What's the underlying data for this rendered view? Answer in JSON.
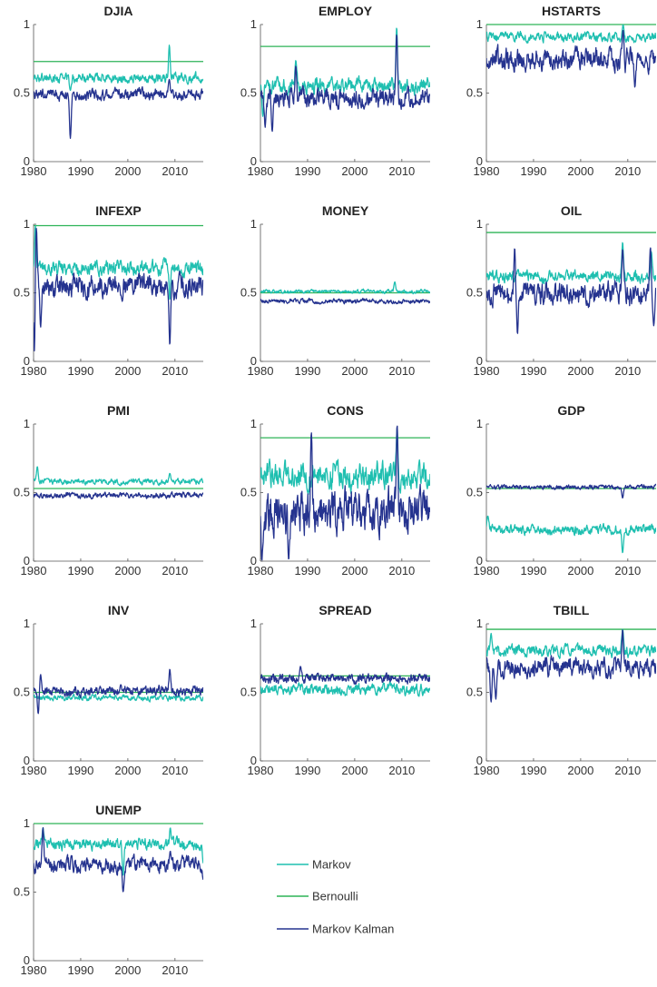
{
  "chart_data": {
    "type": "line",
    "layout": "small-multiples",
    "colors": {
      "Markov": "#1fbfb0",
      "Bernoulli": "#2db357",
      "Markov Kalman": "#25338f"
    },
    "xlim": [
      1980,
      2016
    ],
    "ylim": [
      0,
      1
    ],
    "xticks": [
      1980,
      1990,
      2000,
      2010
    ],
    "yticks": [
      0,
      0.5,
      1
    ],
    "xtick_labels": [
      "1980",
      "1990",
      "2000",
      "2010"
    ],
    "ytick_labels": [
      "0",
      "0.5",
      "1"
    ],
    "legend": {
      "placement": "lower-right empty panel",
      "entries": [
        "Markov",
        "Bernoulli",
        "Markov Kalman"
      ]
    },
    "panels": [
      {
        "title": "DJIA",
        "bernoulli": 0.73,
        "markov": {
          "base": 0.61,
          "noise": 0.025,
          "events": [
            [
              2008.8,
              0.85
            ],
            [
              1987.8,
              0.52
            ]
          ]
        },
        "kalman": {
          "base": 0.49,
          "noise": 0.03,
          "events": [
            [
              1987.8,
              0.17
            ],
            [
              2008.8,
              0.6
            ]
          ]
        }
      },
      {
        "title": "EMPLOY",
        "bernoulli": 0.84,
        "markov": {
          "base": 0.55,
          "noise": 0.04,
          "events": [
            [
              1980.5,
              0.33
            ],
            [
              1987.5,
              0.74
            ],
            [
              2008.9,
              0.98
            ]
          ]
        },
        "kalman": {
          "base": 0.46,
          "noise": 0.05,
          "events": [
            [
              1981.0,
              0.25
            ],
            [
              1982.5,
              0.22
            ],
            [
              1987.5,
              0.7
            ],
            [
              2008.9,
              0.93
            ]
          ]
        }
      },
      {
        "title": "HSTARTS",
        "bernoulli": 1.0,
        "markov": {
          "base": 0.91,
          "noise": 0.025,
          "events": [
            [
              2009.0,
              1.0
            ]
          ]
        },
        "kalman": {
          "base": 0.75,
          "noise": 0.06,
          "events": [
            [
              2011.5,
              0.54
            ],
            [
              2009.0,
              0.96
            ]
          ]
        }
      },
      {
        "title": "INFEXP",
        "bernoulli": 0.99,
        "markov": {
          "base": 0.68,
          "noise": 0.04,
          "events": [
            [
              1980.4,
              0.99
            ],
            [
              2008.9,
              0.45
            ]
          ]
        },
        "kalman": {
          "base": 0.55,
          "noise": 0.06,
          "events": [
            [
              1980.2,
              0.02
            ],
            [
              1980.6,
              0.97
            ],
            [
              1981.5,
              0.25
            ],
            [
              2008.9,
              0.12
            ]
          ]
        }
      },
      {
        "title": "MONEY",
        "bernoulli": 0.5,
        "markov": {
          "base": 0.51,
          "noise": 0.01,
          "events": [
            [
              2008.5,
              0.58
            ]
          ]
        },
        "kalman": {
          "base": 0.44,
          "noise": 0.012,
          "events": []
        }
      },
      {
        "title": "OIL",
        "bernoulli": 0.94,
        "markov": {
          "base": 0.62,
          "noise": 0.03,
          "events": [
            [
              2008.9,
              0.87
            ],
            [
              2015.0,
              0.8
            ]
          ]
        },
        "kalman": {
          "base": 0.49,
          "noise": 0.06,
          "events": [
            [
              1986.0,
              0.83
            ],
            [
              1986.6,
              0.2
            ],
            [
              2008.9,
              0.82
            ],
            [
              2014.8,
              0.83
            ],
            [
              2015.5,
              0.26
            ]
          ]
        }
      },
      {
        "title": "PMI",
        "bernoulli": 0.53,
        "markov": {
          "base": 0.58,
          "noise": 0.015,
          "events": [
            [
              1980.8,
              0.69
            ],
            [
              2008.9,
              0.64
            ]
          ]
        },
        "kalman": {
          "base": 0.48,
          "noise": 0.015,
          "events": []
        }
      },
      {
        "title": "CONS",
        "bernoulli": 0.9,
        "markov": {
          "base": 0.63,
          "noise": 0.07,
          "events": [
            [
              2009.0,
              0.98
            ]
          ]
        },
        "kalman": {
          "base": 0.35,
          "noise": 0.12,
          "events": [
            [
              1980.3,
              0.0
            ],
            [
              1986.0,
              0.01
            ],
            [
              1990.8,
              0.94
            ],
            [
              2009.0,
              1.0
            ]
          ]
        }
      },
      {
        "title": "GDP",
        "bernoulli": 0.53,
        "markov": {
          "base": 0.23,
          "noise": 0.025,
          "events": [
            [
              1980.3,
              0.33
            ],
            [
              2008.9,
              0.06
            ]
          ]
        },
        "kalman": {
          "base": 0.54,
          "noise": 0.012,
          "events": [
            [
              2008.9,
              0.46
            ]
          ]
        }
      },
      {
        "title": "INV",
        "bernoulli": 0.5,
        "markov": {
          "base": 0.46,
          "noise": 0.015,
          "events": []
        },
        "kalman": {
          "base": 0.51,
          "noise": 0.025,
          "events": [
            [
              1981.0,
              0.34
            ],
            [
              1981.5,
              0.63
            ],
            [
              2008.9,
              0.67
            ]
          ]
        }
      },
      {
        "title": "SPREAD",
        "bernoulli": 0.62,
        "markov": {
          "base": 0.52,
          "noise": 0.03,
          "events": []
        },
        "kalman": {
          "base": 0.6,
          "noise": 0.025,
          "events": [
            [
              1988.5,
              0.69
            ]
          ]
        }
      },
      {
        "title": "TBILL",
        "bernoulli": 0.96,
        "markov": {
          "base": 0.8,
          "noise": 0.03,
          "events": [
            [
              1981.0,
              0.93
            ],
            [
              2008.9,
              0.96
            ]
          ]
        },
        "kalman": {
          "base": 0.68,
          "noise": 0.05,
          "events": [
            [
              1981.0,
              0.43
            ],
            [
              1982.0,
              0.45
            ],
            [
              2008.9,
              0.96
            ]
          ]
        }
      },
      {
        "title": "UNEMP",
        "bernoulli": 1.0,
        "markov": {
          "base": 0.85,
          "noise": 0.03,
          "events": [
            [
              1982.0,
              0.97
            ],
            [
              1999.0,
              0.62
            ],
            [
              2009.0,
              0.97
            ],
            [
              2016.0,
              0.71
            ]
          ]
        },
        "kalman": {
          "base": 0.7,
          "noise": 0.04,
          "events": [
            [
              1982.0,
              0.97
            ],
            [
              1999.0,
              0.5
            ],
            [
              2009.0,
              0.8
            ],
            [
              2016.0,
              0.59
            ]
          ]
        }
      }
    ]
  }
}
